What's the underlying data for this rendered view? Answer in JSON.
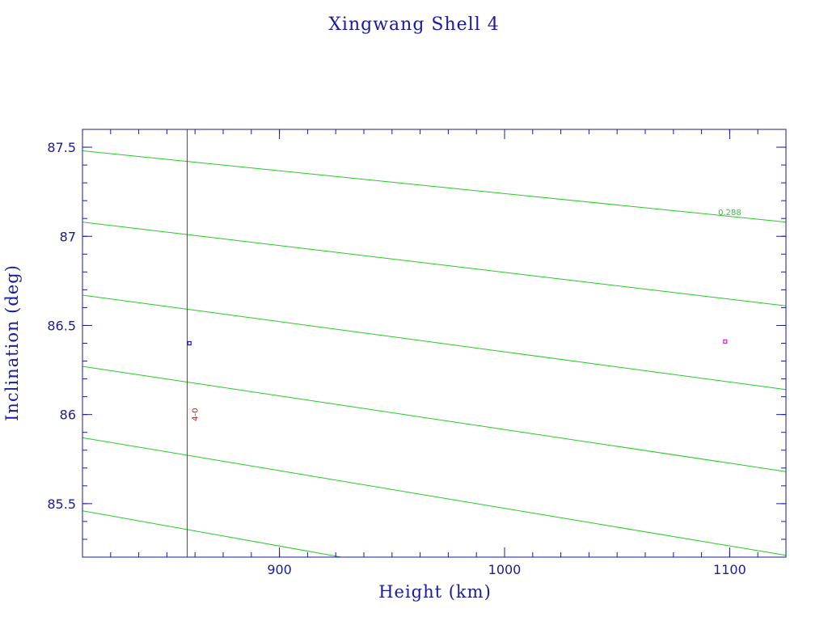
{
  "chart_data": {
    "type": "line",
    "title": "Xingwang Shell 4",
    "xlabel": "Height (km)",
    "ylabel": "Inclination (deg)",
    "xlim": [
      812.5,
      1125
    ],
    "ylim": [
      85.2,
      87.6
    ],
    "x_ticks": [
      {
        "value": 900,
        "label": "900"
      },
      {
        "value": 1000,
        "label": "1000"
      },
      {
        "value": 1100,
        "label": "1100"
      }
    ],
    "y_ticks": [
      {
        "value": 85.5,
        "label": "85.5"
      },
      {
        "value": 86,
        "label": "86"
      },
      {
        "value": 86.5,
        "label": "86.5"
      },
      {
        "value": 87,
        "label": "87"
      },
      {
        "value": 87.5,
        "label": "87.5"
      }
    ],
    "x_minor_step": 12.5,
    "y_minor_step": 0.1,
    "contours": [
      {
        "x": [
          812.5,
          1125
        ],
        "y": [
          87.48,
          87.08
        ],
        "color": "#22cc22",
        "label": "0.288"
      },
      {
        "x": [
          812.5,
          1125
        ],
        "y": [
          87.08,
          86.61
        ],
        "color": "#22cc22",
        "label": ""
      },
      {
        "x": [
          812.5,
          1125
        ],
        "y": [
          86.67,
          86.14
        ],
        "color": "#22cc22",
        "label": ""
      },
      {
        "x": [
          812.5,
          1125
        ],
        "y": [
          86.27,
          85.68
        ],
        "color": "#22cc22",
        "label": ""
      },
      {
        "x": [
          812.5,
          1125
        ],
        "y": [
          85.87,
          85.21
        ],
        "color": "#22cc22",
        "label": ""
      },
      {
        "x": [
          812.5,
          927.5
        ],
        "y": [
          85.46,
          85.2
        ],
        "color": "#22cc22",
        "label": ""
      }
    ],
    "contour_label_pos": {
      "x": 1100,
      "y": 87.12
    },
    "vertical_line": {
      "x": 859,
      "color": "#b02020",
      "label": "4-0",
      "label_y": 86.0
    },
    "points": [
      {
        "x": 860,
        "y": 86.4,
        "color": "#1a1acc"
      },
      {
        "x": 1098,
        "y": 86.41,
        "color": "#cc22cc"
      }
    ],
    "colors": {
      "axis": "#1a1a9a",
      "contour": "#22cc22",
      "marker_line": "#b02020"
    },
    "grid": false
  }
}
